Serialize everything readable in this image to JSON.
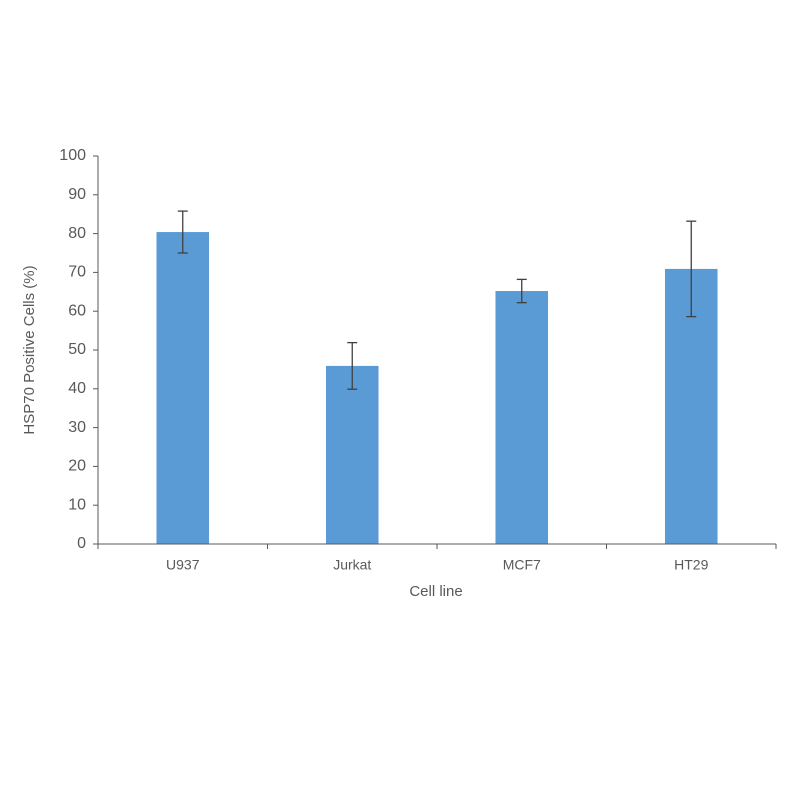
{
  "chart_data": {
    "type": "bar",
    "x_label": "Cell line",
    "y_label": "HSP70 Positive Cells (%)",
    "categories": [
      "U937",
      "Jurkat",
      "MCF7",
      "HT29"
    ],
    "values": [
      80.4,
      45.9,
      65.2,
      70.9
    ],
    "errors": [
      5.4,
      6,
      3,
      12.3
    ],
    "color": "#5b9bd5",
    "ylim": [
      0,
      100
    ],
    "yticks": [
      0,
      10,
      20,
      30,
      40,
      50,
      60,
      70,
      80,
      90,
      100
    ],
    "grid": false
  }
}
